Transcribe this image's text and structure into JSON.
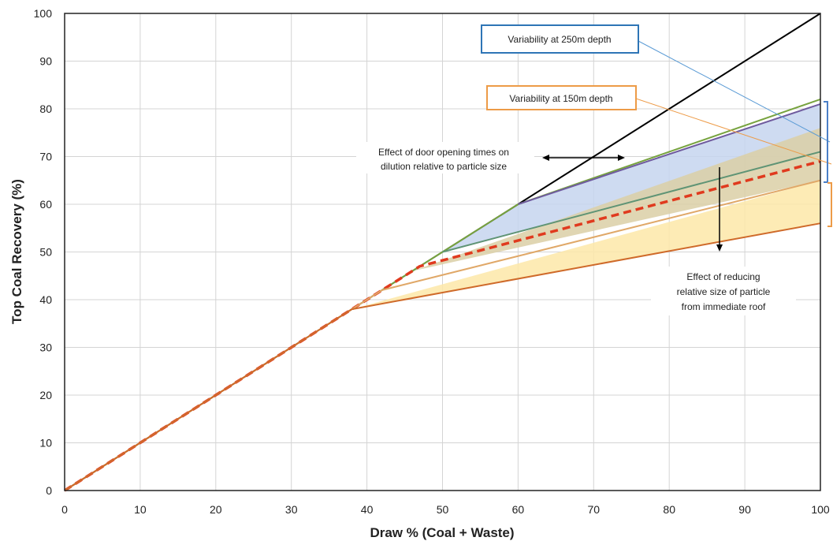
{
  "chart_data": {
    "type": "line",
    "xlabel": "Draw % (Coal + Waste)",
    "ylabel": "Top Coal Recovery (%)",
    "xlim": [
      0,
      100
    ],
    "ylim": [
      0,
      100
    ],
    "xticks": [
      "0",
      "10",
      "20",
      "30",
      "40",
      "50",
      "60",
      "70",
      "80",
      "90",
      "100"
    ],
    "yticks": [
      "0",
      "10",
      "20",
      "30",
      "40",
      "50",
      "60",
      "70",
      "80",
      "90",
      "100"
    ],
    "grid": true,
    "series": [
      {
        "key": "black",
        "color": "#000000",
        "dashed": false,
        "x": [
          0,
          100
        ],
        "y": [
          0,
          100
        ]
      },
      {
        "key": "light-green",
        "color": "#77a33f",
        "dashed": false,
        "x": [
          0,
          50,
          60,
          100
        ],
        "y": [
          0,
          50,
          60,
          82
        ]
      },
      {
        "key": "purple",
        "color": "#6f5b9e",
        "dashed": false,
        "x": [
          60,
          100
        ],
        "y": [
          60,
          81
        ]
      },
      {
        "key": "teal",
        "color": "#5f9475",
        "dashed": false,
        "x": [
          50,
          100
        ],
        "y": [
          50,
          71
        ]
      },
      {
        "key": "red-dashed",
        "color": "#e03a1e",
        "dashed": true,
        "x": [
          0,
          47,
          100
        ],
        "y": [
          0,
          47,
          69
        ]
      },
      {
        "key": "tan",
        "color": "#e0a868",
        "dashed": false,
        "x": [
          0,
          42,
          100
        ],
        "y": [
          0,
          42,
          65
        ]
      },
      {
        "key": "dark-orange",
        "color": "#cf6a2a",
        "dashed": false,
        "x": [
          0,
          38,
          100
        ],
        "y": [
          0,
          38,
          56
        ]
      }
    ],
    "bands": [
      {
        "key": "blue-band",
        "color": "#c6d5ee",
        "x": [
          50,
          60,
          100,
          100,
          50
        ],
        "y": [
          50,
          60,
          81,
          71,
          50
        ]
      },
      {
        "key": "tan-band",
        "color": "#dbcfa6",
        "x": [
          46,
          100,
          100,
          46
        ],
        "y": [
          46,
          76,
          65,
          46
        ]
      },
      {
        "key": "yellow-band",
        "color": "#fde7a8",
        "x": [
          38,
          100,
          100,
          38
        ],
        "y": [
          38,
          65,
          56,
          38
        ]
      }
    ],
    "annotations": {
      "var250": "Variability at 250m depth",
      "var150": "Variability at 150m depth",
      "door_line1": "Effect of door opening times on",
      "door_line2": "dilution relative to particle size",
      "reduce_line1": "Effect of reducing",
      "reduce_line2": "relative size of particle",
      "reduce_line3": "from immediate roof"
    },
    "colors": {
      "var250_border": "#2e75b6",
      "var150_border": "#ed9b47",
      "bracket_blue": "#4a7fc7",
      "bracket_orange": "#ed9b47"
    }
  }
}
